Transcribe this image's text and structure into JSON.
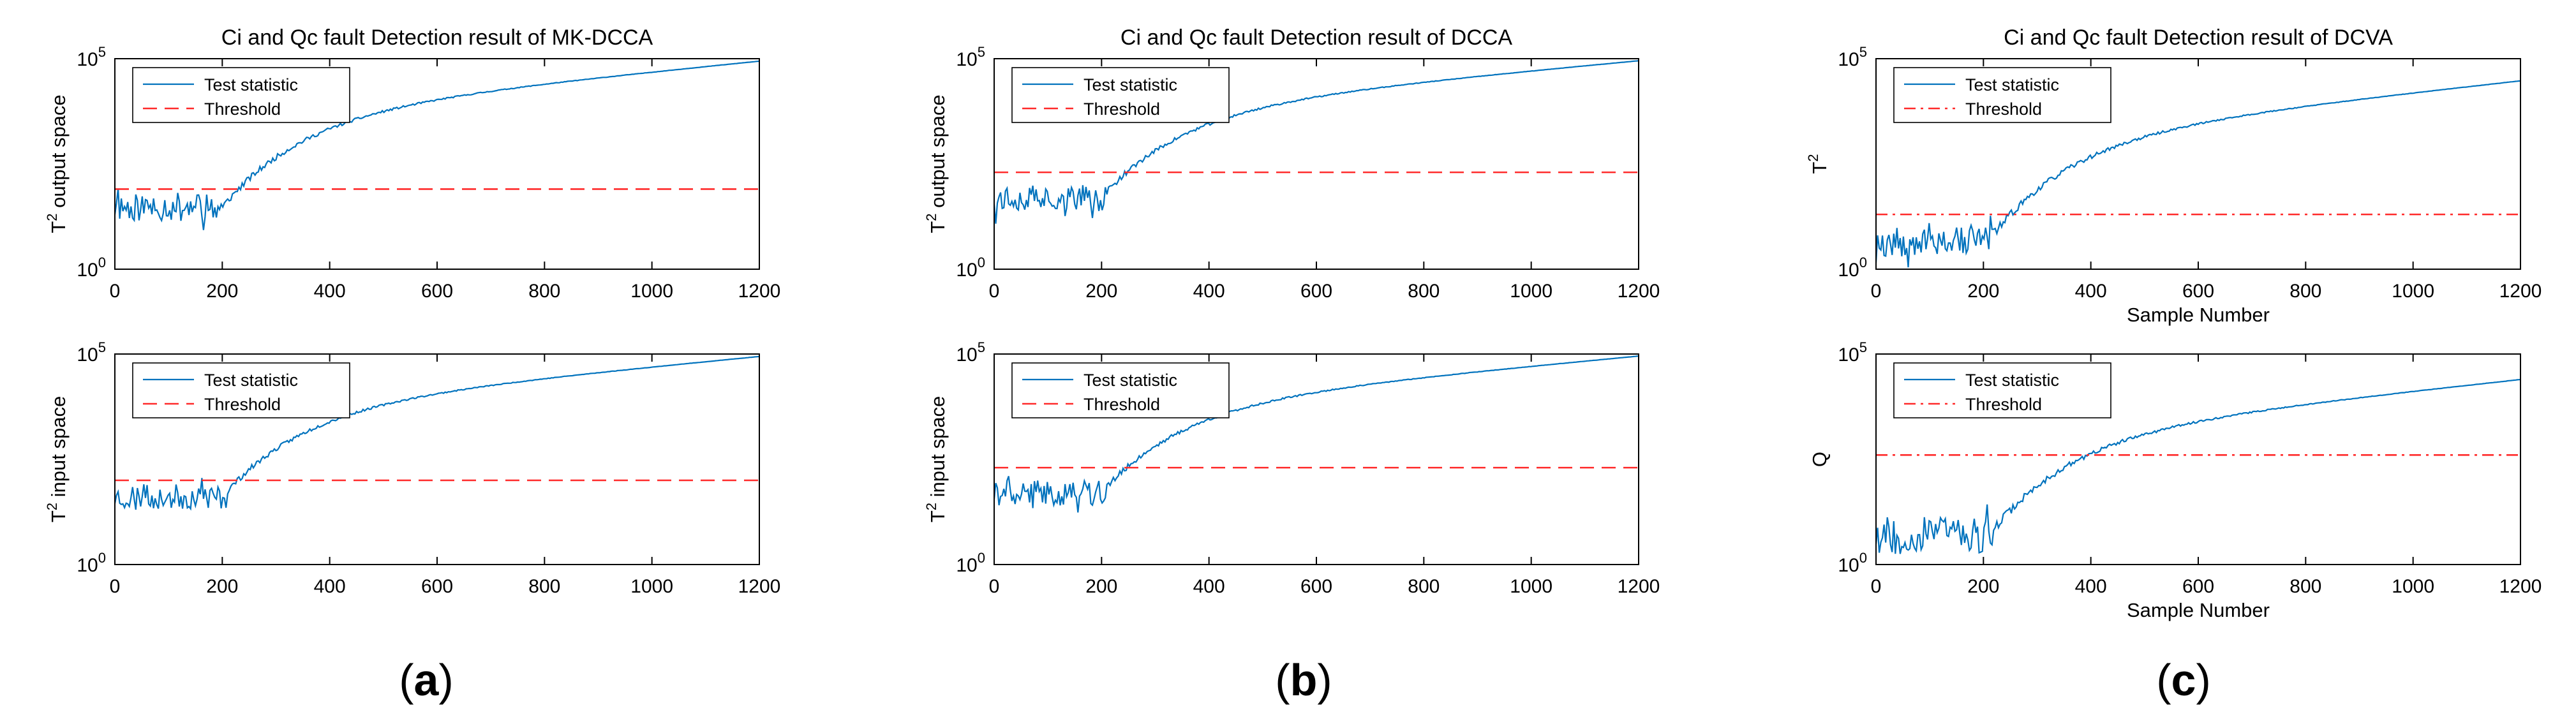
{
  "figure": {
    "panel_labels": [
      "a",
      "b",
      "c"
    ]
  },
  "colors": {
    "test_statistic": "#0072BD",
    "threshold": "#FF2A2A",
    "axis": "#000000"
  },
  "chart_data": [
    {
      "type": "line",
      "panel": "a",
      "title": "Ci and Qc fault Detection result of MK-DCCA",
      "xlabel": "",
      "ylabel_base": "T",
      "ylabel_sup": "2",
      "ylabel_rest": " output space",
      "xlim": [
        0,
        1200
      ],
      "ylim": [
        1,
        100000
      ],
      "y_scale": "log",
      "x_ticks": [
        0,
        200,
        400,
        600,
        800,
        1000,
        1200
      ],
      "y_ticks": [
        {
          "base": "10",
          "exp": "0",
          "value": 1
        },
        {
          "base": "10",
          "exp": "5",
          "value": 100000
        }
      ],
      "legend_position": "top-left",
      "series": [
        {
          "name": "Test statistic",
          "style": "solid",
          "fault_start": 210,
          "base_value": 30,
          "final_value": 88000,
          "noise": 0.35,
          "seed": 11
        },
        {
          "name": "Threshold",
          "style": "dashed",
          "value": 80
        }
      ]
    },
    {
      "type": "line",
      "panel": "a",
      "title": "",
      "xlabel": "",
      "ylabel_base": "T",
      "ylabel_sup": "2",
      "ylabel_rest": " input space",
      "xlim": [
        0,
        1200
      ],
      "ylim": [
        1,
        100000
      ],
      "y_scale": "log",
      "x_ticks": [
        0,
        200,
        400,
        600,
        800,
        1000,
        1200
      ],
      "y_ticks": [
        {
          "base": "10",
          "exp": "0",
          "value": 1
        },
        {
          "base": "10",
          "exp": "5",
          "value": 100000
        }
      ],
      "legend_position": "top-left",
      "series": [
        {
          "name": "Test statistic",
          "style": "solid",
          "fault_start": 210,
          "base_value": 40,
          "final_value": 88000,
          "noise": 0.3,
          "seed": 23
        },
        {
          "name": "Threshold",
          "style": "dashed",
          "value": 100
        }
      ]
    },
    {
      "type": "line",
      "panel": "b",
      "title": "Ci and Qc fault Detection result of DCCA",
      "xlabel": "",
      "ylabel_base": "T",
      "ylabel_sup": "2",
      "ylabel_rest": " output space",
      "xlim": [
        0,
        1200
      ],
      "ylim": [
        1,
        100000
      ],
      "y_scale": "log",
      "x_ticks": [
        0,
        200,
        400,
        600,
        800,
        1000,
        1200
      ],
      "y_ticks": [
        {
          "base": "10",
          "exp": "0",
          "value": 1
        },
        {
          "base": "10",
          "exp": "5",
          "value": 100000
        }
      ],
      "legend_position": "top-left",
      "series": [
        {
          "name": "Test statistic",
          "style": "solid",
          "fault_start": 210,
          "base_value": 50,
          "final_value": 90000,
          "noise": 0.3,
          "seed": 37
        },
        {
          "name": "Threshold",
          "style": "dashed",
          "value": 200
        }
      ]
    },
    {
      "type": "line",
      "panel": "b",
      "title": "",
      "xlabel": "",
      "ylabel_base": "T",
      "ylabel_sup": "2",
      "ylabel_rest": " input space",
      "xlim": [
        0,
        1200
      ],
      "ylim": [
        1,
        100000
      ],
      "y_scale": "log",
      "x_ticks": [
        0,
        200,
        400,
        600,
        800,
        1000,
        1200
      ],
      "y_ticks": [
        {
          "base": "10",
          "exp": "0",
          "value": 1
        },
        {
          "base": "10",
          "exp": "5",
          "value": 100000
        }
      ],
      "legend_position": "top-left",
      "series": [
        {
          "name": "Test statistic",
          "style": "solid",
          "fault_start": 210,
          "base_value": 50,
          "final_value": 90000,
          "noise": 0.3,
          "seed": 41
        },
        {
          "name": "Threshold",
          "style": "dashed",
          "value": 200
        }
      ]
    },
    {
      "type": "line",
      "panel": "c",
      "title": "Ci and Qc fault Detection result of DCVA",
      "xlabel": "Sample Number",
      "ylabel_base": "T",
      "ylabel_sup": "2",
      "ylabel_rest": "",
      "xlim": [
        0,
        1200
      ],
      "ylim": [
        1,
        100000
      ],
      "y_scale": "log",
      "x_ticks": [
        0,
        200,
        400,
        600,
        800,
        1000,
        1200
      ],
      "y_ticks": [
        {
          "base": "10",
          "exp": "0",
          "value": 1
        },
        {
          "base": "10",
          "exp": "5",
          "value": 100000
        }
      ],
      "legend_position": "top-left",
      "series": [
        {
          "name": "Test statistic",
          "style": "solid",
          "fault_start": 220,
          "base_value": 5,
          "final_value": 30000,
          "noise": 0.4,
          "seed": 53
        },
        {
          "name": "Threshold",
          "style": "dashdot",
          "value": 20
        }
      ]
    },
    {
      "type": "line",
      "panel": "c",
      "title": "",
      "xlabel": "Sample Number",
      "ylabel_base": "Q",
      "ylabel_sup": "",
      "ylabel_rest": "",
      "xlim": [
        0,
        1200
      ],
      "ylim": [
        1,
        100000
      ],
      "y_scale": "log",
      "x_ticks": [
        0,
        200,
        400,
        600,
        800,
        1000,
        1200
      ],
      "y_ticks": [
        {
          "base": "10",
          "exp": "0",
          "value": 1
        },
        {
          "base": "10",
          "exp": "5",
          "value": 100000
        }
      ],
      "legend_position": "top-left",
      "series": [
        {
          "name": "Test statistic",
          "style": "solid",
          "fault_start": 220,
          "base_value": 5,
          "final_value": 25000,
          "noise": 0.45,
          "seed": 67
        },
        {
          "name": "Threshold",
          "style": "dashdot",
          "value": 400
        }
      ]
    }
  ]
}
